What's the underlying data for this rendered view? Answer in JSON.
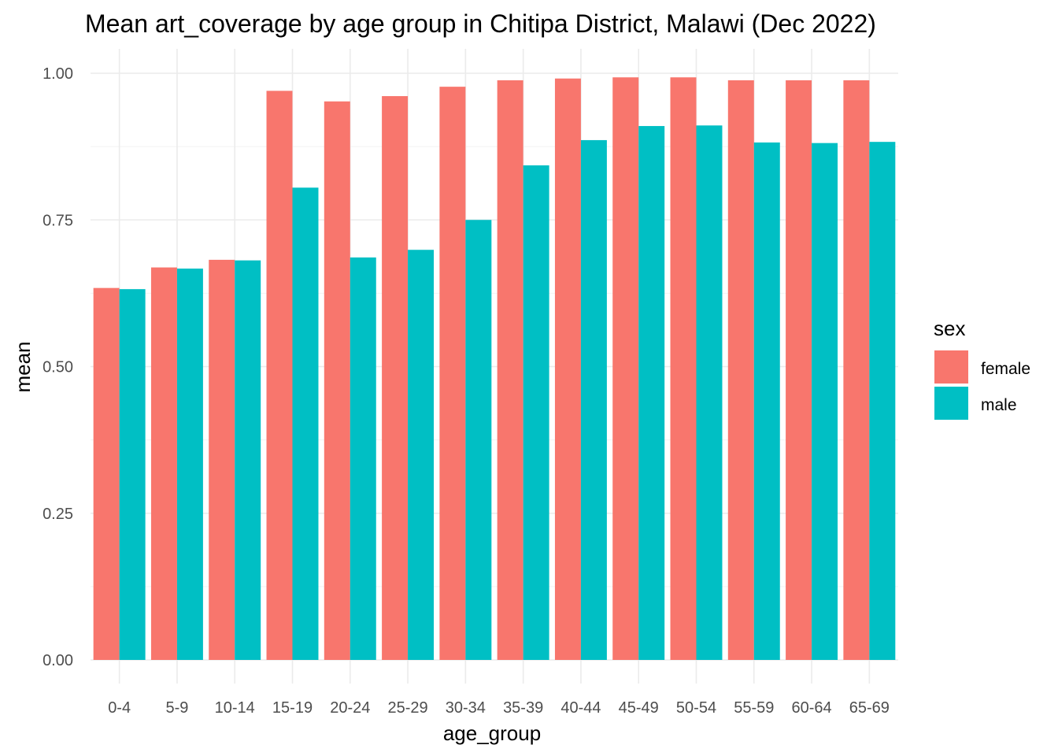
{
  "chart_data": {
    "type": "bar",
    "title": "Mean art_coverage by age group in Chitipa District, Malawi (Dec 2022)",
    "xlabel": "age_group",
    "ylabel": "mean",
    "ylim": [
      0,
      1.02
    ],
    "yticks": [
      "0.00",
      "0.25",
      "0.50",
      "0.75",
      "1.00"
    ],
    "ytick_values": [
      0,
      0.25,
      0.5,
      0.75,
      1.0
    ],
    "grid": true,
    "legend_title": "sex",
    "legend_position": "right",
    "categories": [
      "0-4",
      "5-9",
      "10-14",
      "15-19",
      "20-24",
      "25-29",
      "30-34",
      "35-39",
      "40-44",
      "45-49",
      "50-54",
      "55-59",
      "60-64",
      "65-69"
    ],
    "series": [
      {
        "name": "female",
        "color": "#F8766D",
        "values": [
          0.634,
          0.669,
          0.682,
          0.97,
          0.952,
          0.961,
          0.977,
          0.988,
          0.991,
          0.993,
          0.993,
          0.988,
          0.988,
          0.988
        ]
      },
      {
        "name": "male",
        "color": "#00BFC4",
        "values": [
          0.632,
          0.667,
          0.681,
          0.805,
          0.686,
          0.699,
          0.75,
          0.843,
          0.886,
          0.91,
          0.911,
          0.882,
          0.881,
          0.883
        ]
      }
    ]
  }
}
